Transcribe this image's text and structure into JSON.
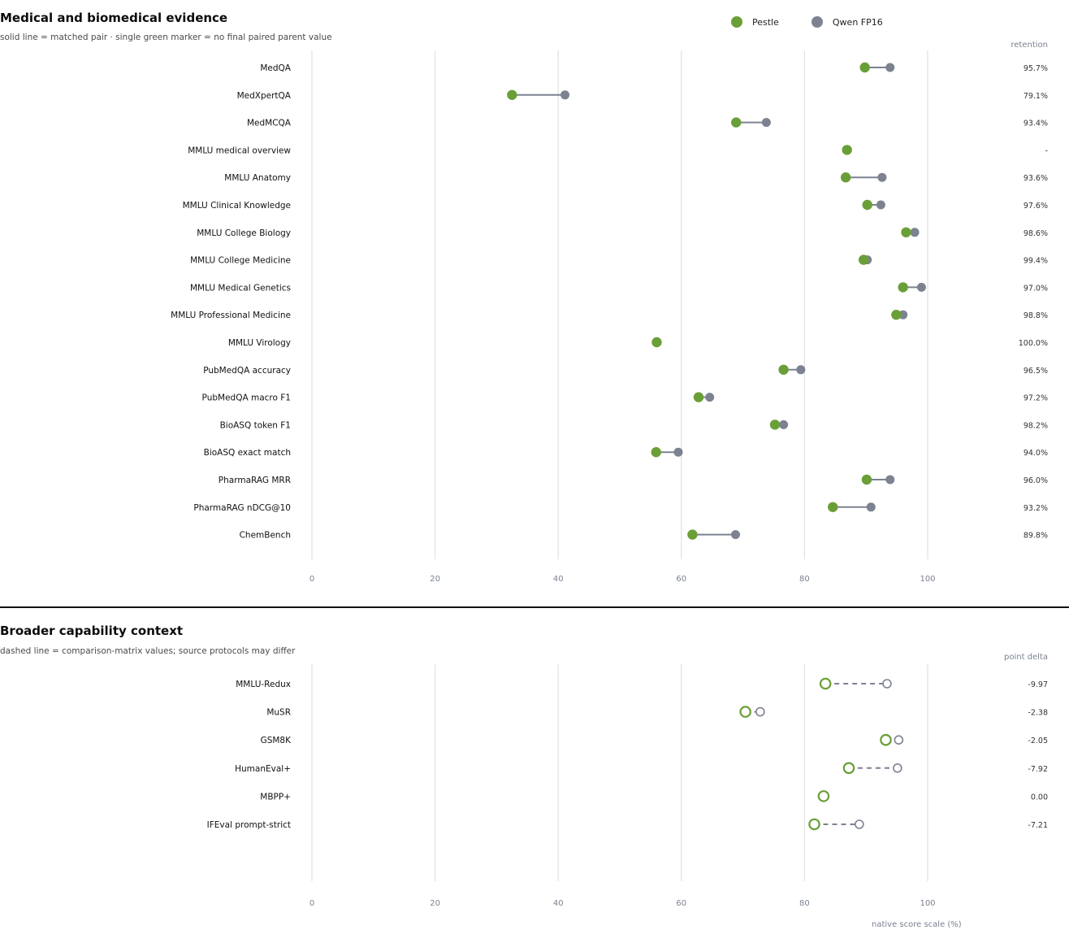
{
  "colors": {
    "pestle": "#6a9f37",
    "qwen": "#7d8290",
    "grid": "#e3e3e3",
    "tick_text": "#7a8290"
  },
  "legend": [
    {
      "label": "Pestle",
      "color": "#6a9f37"
    },
    {
      "label": "Qwen FP16",
      "color": "#7d8290"
    }
  ],
  "axis_caption": "native score scale (%)",
  "panels": [
    {
      "title": "Medical and biomedical evidence",
      "subtitle": "solid line = matched pair · single green marker = no final paired parent value",
      "value_header": "retention"
    },
    {
      "title": "Broader capability context",
      "subtitle": "dashed line = comparison-matrix values; source protocols may differ",
      "value_header": "point delta"
    }
  ],
  "chart_data": [
    {
      "type": "dumbbell",
      "title": "Medical and biomedical evidence",
      "xlim": [
        0,
        100
      ],
      "xticks": [
        0,
        20,
        40,
        60,
        80,
        100
      ],
      "grid": true,
      "legend_position": "top-right",
      "marker_style": "filled",
      "line_style": "solid",
      "series_names": [
        "Pestle",
        "Qwen FP16"
      ],
      "rows": [
        {
          "label": "MedQA",
          "pestle": 89.8,
          "qwen": 93.9,
          "value": "95.7%"
        },
        {
          "label": "MedXpertQA",
          "pestle": 32.5,
          "qwen": 41.1,
          "value": "79.1%"
        },
        {
          "label": "MedMCQA",
          "pestle": 68.9,
          "qwen": 73.8,
          "value": "93.4%"
        },
        {
          "label": "MMLU medical overview",
          "pestle": 86.9,
          "qwen": null,
          "value": "-"
        },
        {
          "label": "MMLU Anatomy",
          "pestle": 86.7,
          "qwen": 92.6,
          "value": "93.6%"
        },
        {
          "label": "MMLU Clinical Knowledge",
          "pestle": 90.2,
          "qwen": 92.4,
          "value": "97.6%"
        },
        {
          "label": "MMLU College Biology",
          "pestle": 96.5,
          "qwen": 97.9,
          "value": "98.6%"
        },
        {
          "label": "MMLU College Medicine",
          "pestle": 89.6,
          "qwen": 90.2,
          "value": "99.4%"
        },
        {
          "label": "MMLU Medical Genetics",
          "pestle": 96.0,
          "qwen": 99.0,
          "value": "97.0%"
        },
        {
          "label": "MMLU Professional Medicine",
          "pestle": 94.9,
          "qwen": 96.0,
          "value": "98.8%"
        },
        {
          "label": "MMLU Virology",
          "pestle": 56.0,
          "qwen": null,
          "value": "100.0%"
        },
        {
          "label": "PubMedQA accuracy",
          "pestle": 76.6,
          "qwen": 79.4,
          "value": "96.5%"
        },
        {
          "label": "PubMedQA macro F1",
          "pestle": 62.8,
          "qwen": 64.6,
          "value": "97.2%"
        },
        {
          "label": "BioASQ token F1",
          "pestle": 75.2,
          "qwen": 76.6,
          "value": "98.2%"
        },
        {
          "label": "BioASQ exact match",
          "pestle": 55.9,
          "qwen": 59.5,
          "value": "94.0%"
        },
        {
          "label": "PharmaRAG MRR",
          "pestle": 90.1,
          "qwen": 93.9,
          "value": "96.0%"
        },
        {
          "label": "PharmaRAG nDCG@10",
          "pestle": 84.6,
          "qwen": 90.8,
          "value": "93.2%"
        },
        {
          "label": "ChemBench",
          "pestle": 61.8,
          "qwen": 68.8,
          "value": "89.8%"
        }
      ]
    },
    {
      "type": "dumbbell",
      "title": "Broader capability context",
      "xlim": [
        0,
        100
      ],
      "xticks": [
        0,
        20,
        40,
        60,
        80,
        100
      ],
      "xlabel": "native score scale (%)",
      "grid": true,
      "marker_style": "hollow",
      "line_style": "dashed",
      "series_names": [
        "Pestle",
        "Qwen FP16"
      ],
      "rows": [
        {
          "label": "MMLU-Redux",
          "pestle": 83.4,
          "qwen": 93.4,
          "value": "-9.97"
        },
        {
          "label": "MuSR",
          "pestle": 70.4,
          "qwen": 72.8,
          "value": "-2.38"
        },
        {
          "label": "GSM8K",
          "pestle": 93.2,
          "qwen": 95.3,
          "value": "-2.05"
        },
        {
          "label": "HumanEval+",
          "pestle": 87.2,
          "qwen": 95.1,
          "value": "-7.92"
        },
        {
          "label": "MBPP+",
          "pestle": 83.1,
          "qwen": 83.1,
          "value": "0.00"
        },
        {
          "label": "IFEval prompt-strict",
          "pestle": 81.6,
          "qwen": 88.9,
          "value": "-7.21"
        }
      ]
    }
  ]
}
